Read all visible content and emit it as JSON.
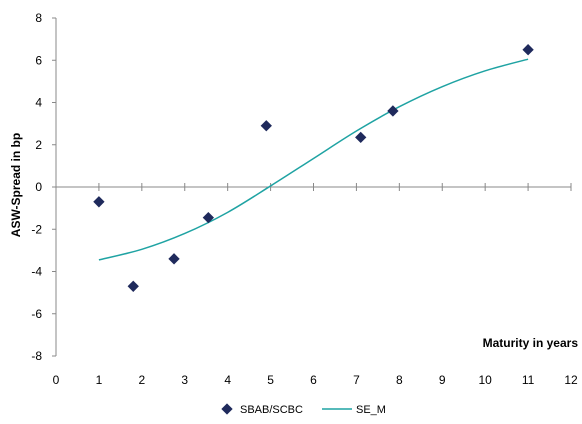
{
  "chart_data": {
    "type": "scatter",
    "title": "",
    "xlabel": "Maturity in years",
    "ylabel": "ASW-Spread in bp",
    "xlim": [
      0,
      12
    ],
    "ylim": [
      -8,
      8
    ],
    "x_ticks": [
      0,
      1,
      2,
      3,
      4,
      5,
      6,
      7,
      8,
      9,
      10,
      11,
      12
    ],
    "y_ticks": [
      -8,
      -6,
      -4,
      -2,
      0,
      2,
      4,
      6,
      8
    ],
    "grid": false,
    "legend_position": "bottom",
    "series": [
      {
        "name": "SBAB/SCBC",
        "type": "scatter",
        "marker": "diamond",
        "color": "#1F2A5C",
        "points": [
          {
            "x": 1.0,
            "y": -0.7
          },
          {
            "x": 1.8,
            "y": -4.7
          },
          {
            "x": 2.75,
            "y": -3.4
          },
          {
            "x": 3.55,
            "y": -1.45
          },
          {
            "x": 4.9,
            "y": 2.9
          },
          {
            "x": 7.1,
            "y": 2.35
          },
          {
            "x": 7.85,
            "y": 3.6
          },
          {
            "x": 11.0,
            "y": 6.5
          }
        ]
      },
      {
        "name": "SE_M",
        "type": "line",
        "color": "#1FA3A3",
        "points": [
          {
            "x": 1.0,
            "y": -3.45
          },
          {
            "x": 2.0,
            "y": -2.95
          },
          {
            "x": 3.0,
            "y": -2.2
          },
          {
            "x": 4.0,
            "y": -1.2
          },
          {
            "x": 5.0,
            "y": 0.05
          },
          {
            "x": 6.0,
            "y": 1.35
          },
          {
            "x": 7.0,
            "y": 2.65
          },
          {
            "x": 8.0,
            "y": 3.8
          },
          {
            "x": 9.0,
            "y": 4.75
          },
          {
            "x": 10.0,
            "y": 5.5
          },
          {
            "x": 11.0,
            "y": 6.05
          }
        ]
      }
    ]
  }
}
